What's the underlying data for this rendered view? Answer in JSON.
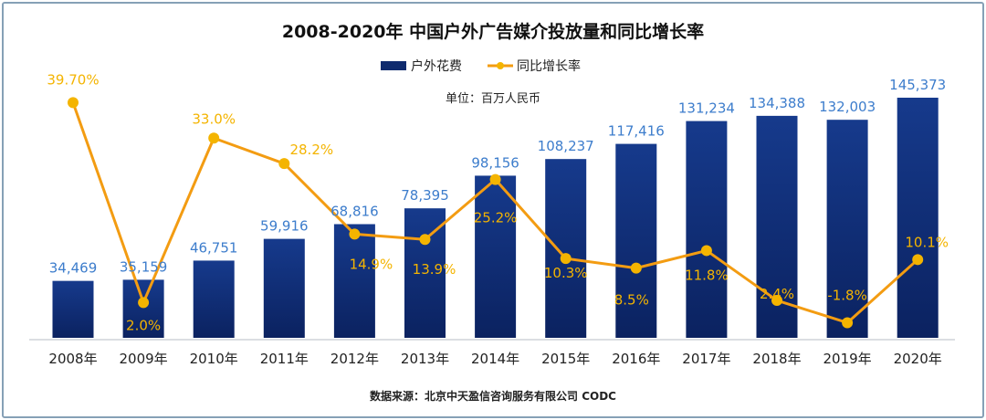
{
  "chart_data": {
    "type": "bar",
    "title": "2008-2020年 中国户外广告媒介投放量和同比增长率",
    "unit": "单位：百万人民币",
    "source": "数据来源：北京中天盈信咨询服务有限公司 CODC",
    "categories": [
      "2008年",
      "2009年",
      "2010年",
      "2011年",
      "2012年",
      "2013年",
      "2014年",
      "2015年",
      "2016年",
      "2017年",
      "2018年",
      "2019年",
      "2020年"
    ],
    "series": [
      {
        "name": "户外花费",
        "type": "bar",
        "color": "#0f2b6e",
        "values": [
          34469,
          35159,
          46751,
          59916,
          68816,
          78395,
          98156,
          108237,
          117416,
          131234,
          134388,
          132003,
          145373
        ],
        "labels": [
          "34,469",
          "35,159",
          "46,751",
          "59,916",
          "68,816",
          "78,395",
          "98,156",
          "108,237",
          "117,416",
          "131,234",
          "134,388",
          "132,003",
          "145,373"
        ]
      },
      {
        "name": "同比增长率",
        "type": "line",
        "color": "#f39c12",
        "marker_color": "#f4b400",
        "values": [
          39.7,
          2.0,
          33.0,
          28.2,
          14.9,
          13.9,
          25.2,
          10.3,
          8.5,
          11.8,
          2.4,
          -1.8,
          10.1
        ],
        "labels": [
          "39.70%",
          "2.0%",
          "33.0%",
          "28.2%",
          "14.9%",
          "13.9%",
          "25.2%",
          "10.3%",
          "8.5%",
          "11.8%",
          "2.4%",
          "-1.8%",
          "10.1%"
        ]
      }
    ],
    "legend_position": "top-center",
    "grid": false
  }
}
